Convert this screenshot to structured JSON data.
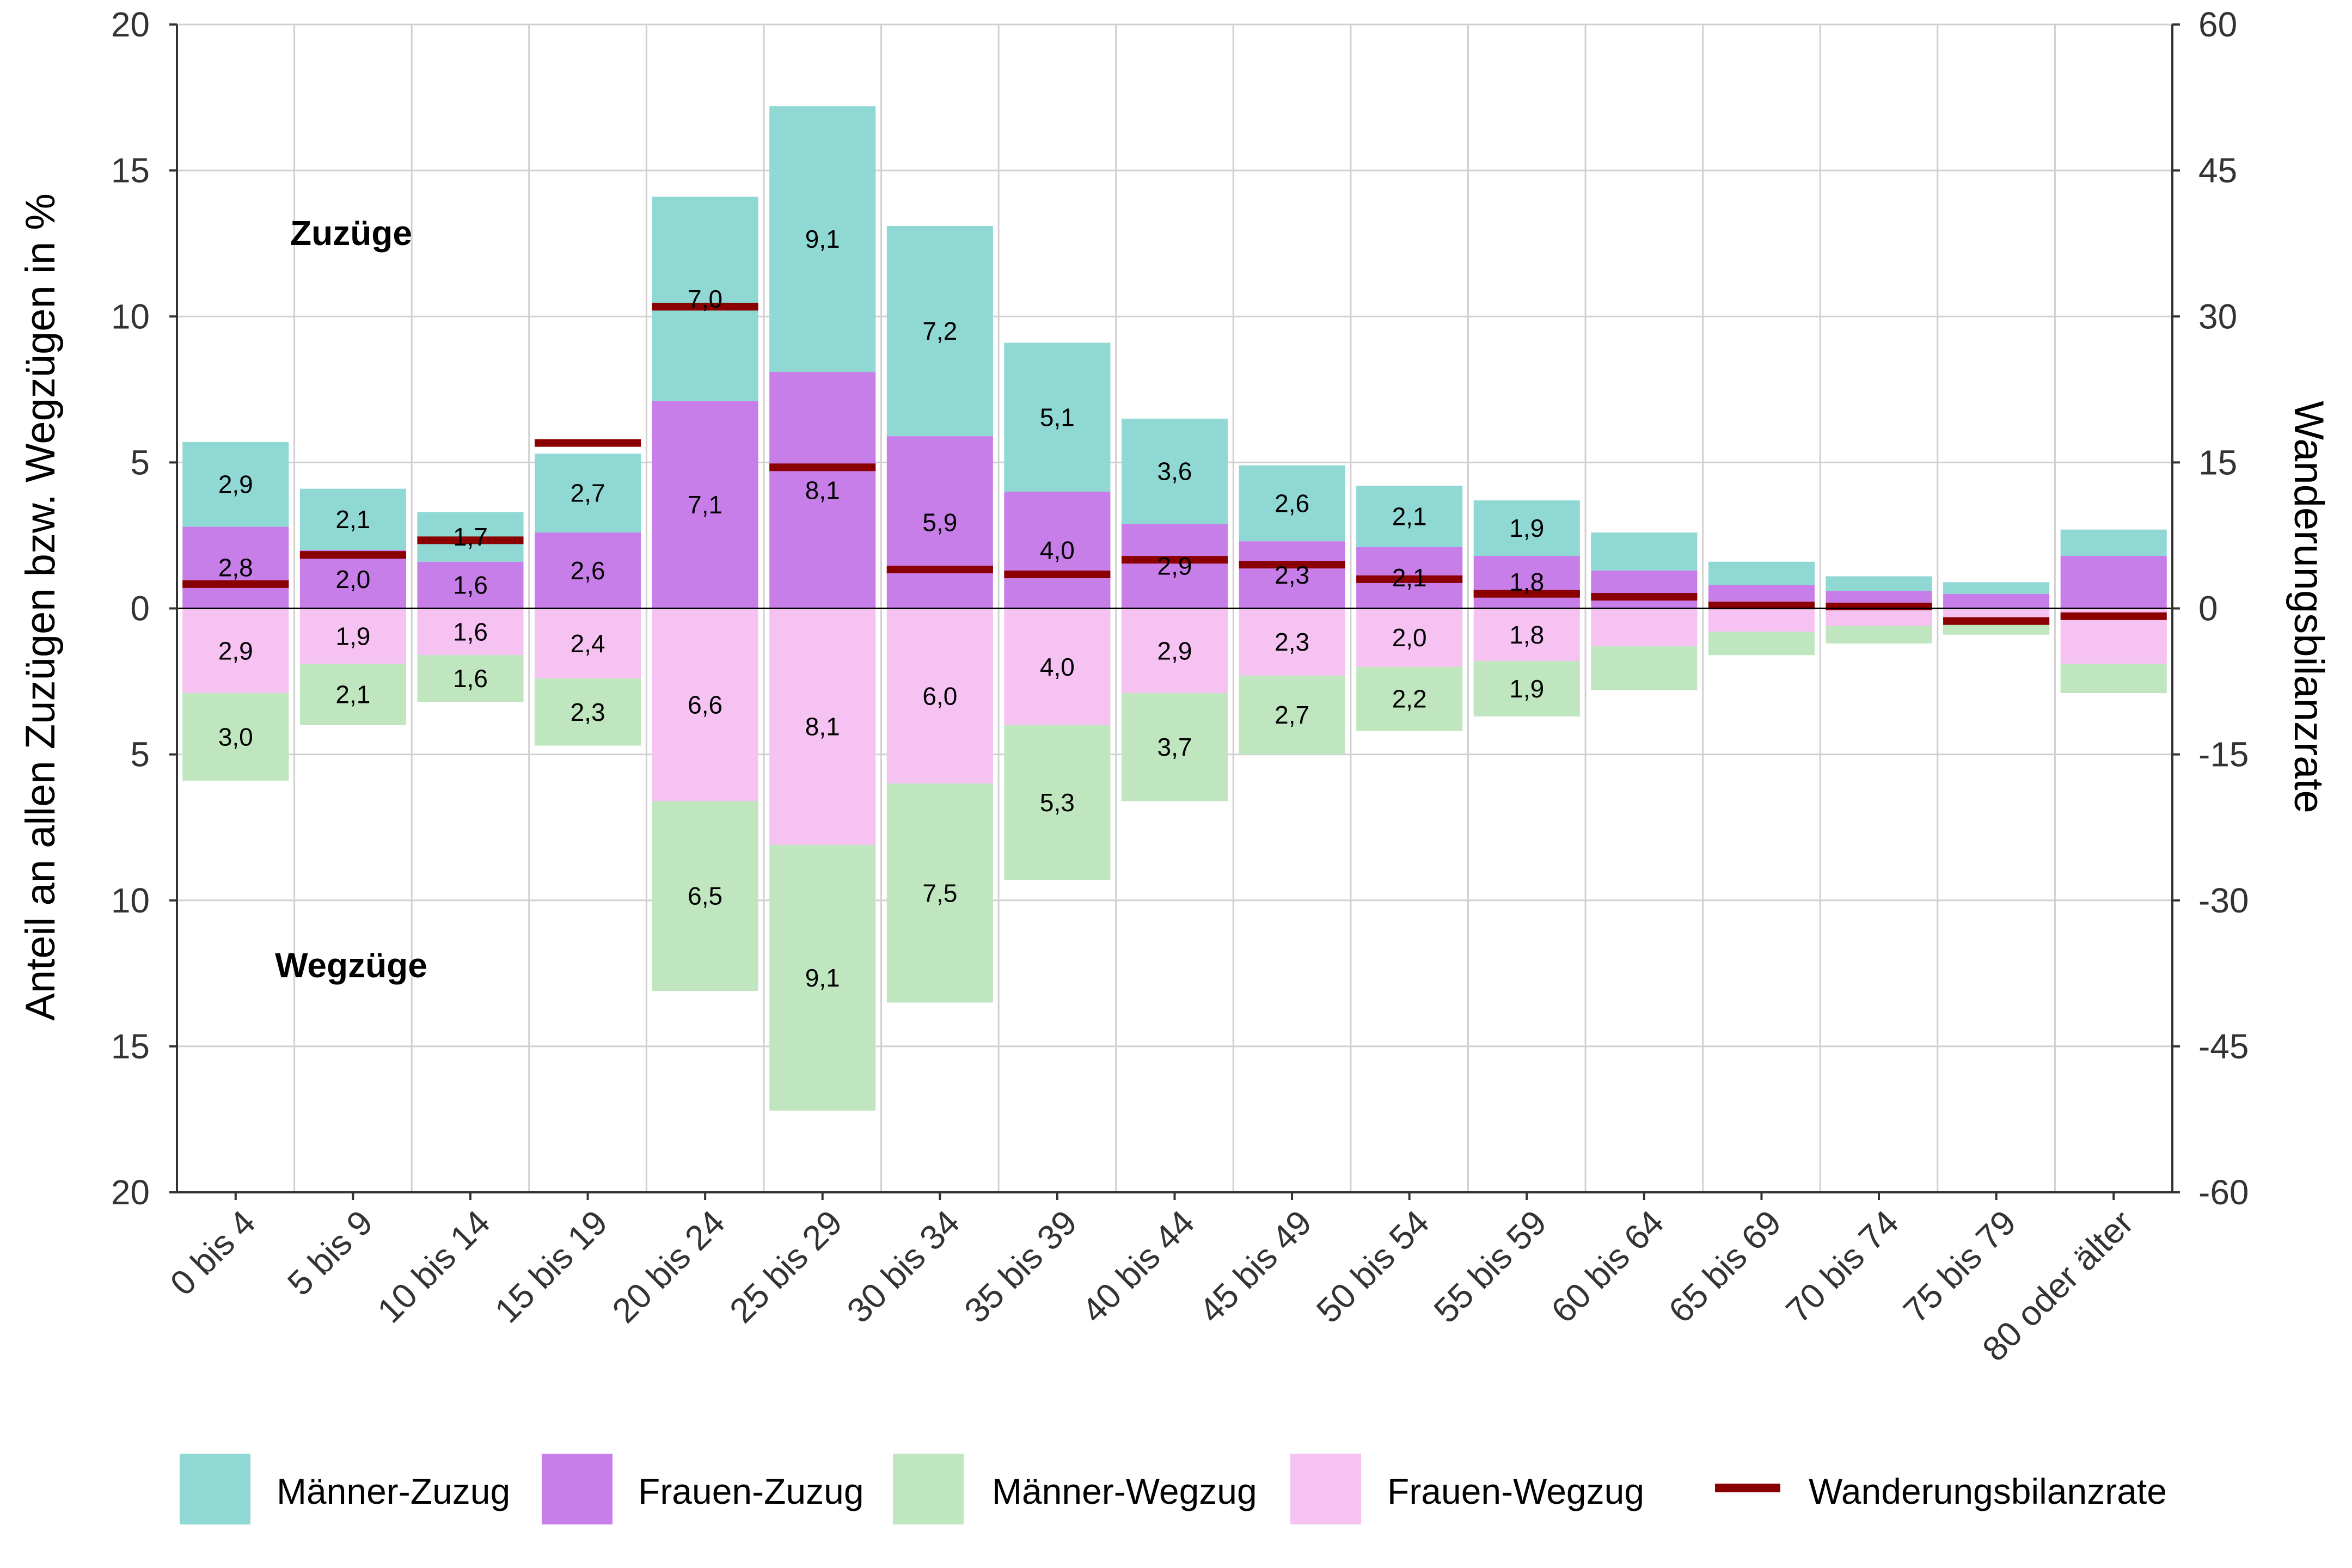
{
  "chart_data": {
    "type": "bar",
    "stacked": true,
    "diverging": true,
    "categories": [
      "0 bis 4",
      "5 bis 9",
      "10 bis 14",
      "15 bis 19",
      "20 bis 24",
      "25 bis 29",
      "30 bis 34",
      "35 bis 39",
      "40 bis 44",
      "45 bis 49",
      "50 bis 54",
      "55 bis 59",
      "60 bis 64",
      "65 bis 69",
      "70 bis 74",
      "75 bis 79",
      "80 oder älter"
    ],
    "series": [
      {
        "key": "frauen_zuzug",
        "name": "Frauen-Zuzug",
        "direction": "up",
        "color": "#c77ee8",
        "values": [
          2.8,
          2.0,
          1.6,
          2.6,
          7.1,
          8.1,
          5.9,
          4.0,
          2.9,
          2.3,
          2.1,
          1.8,
          1.3,
          0.8,
          0.6,
          0.5,
          1.8
        ],
        "labels": [
          "2,8",
          "2,0",
          "1,6",
          "2,6",
          "7,1",
          "8,1",
          "5,9",
          "4,0",
          "2,9",
          "2,3",
          "2,1",
          "1,8",
          "",
          "",
          "",
          "",
          ""
        ]
      },
      {
        "key": "maenner_zuzug",
        "name": "Männer-Zuzug",
        "direction": "up",
        "color": "#8fd8d4",
        "values": [
          2.9,
          2.1,
          1.7,
          2.7,
          7.0,
          9.1,
          7.2,
          5.1,
          3.6,
          2.6,
          2.1,
          1.9,
          1.3,
          0.8,
          0.5,
          0.4,
          0.9
        ],
        "labels": [
          "2,9",
          "2,1",
          "1,7",
          "2,7",
          "7,0",
          "9,1",
          "7,2",
          "5,1",
          "3,6",
          "2,6",
          "2,1",
          "1,9",
          "",
          "",
          "",
          "",
          ""
        ]
      },
      {
        "key": "frauen_wegzug",
        "name": "Frauen-Wegzug",
        "direction": "down",
        "color": "#f5c2f2",
        "values": [
          2.9,
          1.9,
          1.6,
          2.4,
          6.6,
          8.1,
          6.0,
          4.0,
          2.9,
          2.3,
          2.0,
          1.8,
          1.3,
          0.8,
          0.6,
          0.5,
          1.9
        ],
        "labels": [
          "2,9",
          "1,9",
          "1,6",
          "2,4",
          "6,6",
          "8,1",
          "6,0",
          "4,0",
          "2,9",
          "2,3",
          "2,0",
          "1,8",
          "",
          "",
          "",
          "",
          ""
        ]
      },
      {
        "key": "maenner_wegzug",
        "name": "Männer-Wegzug",
        "direction": "down",
        "color": "#bfe6bf",
        "values": [
          3.0,
          2.1,
          1.6,
          2.3,
          6.5,
          9.1,
          7.5,
          5.3,
          3.7,
          2.7,
          2.2,
          1.9,
          1.5,
          0.8,
          0.6,
          0.4,
          1.0
        ],
        "labels": [
          "3,0",
          "2,1",
          "1,6",
          "2,3",
          "6,5",
          "9,1",
          "7,5",
          "5,3",
          "3,7",
          "2,7",
          "2,2",
          "1,9",
          "",
          "",
          "",
          "",
          ""
        ]
      }
    ],
    "line_series": {
      "name": "Wanderungsbilanzrate",
      "color": "#8b0000",
      "axis": "right",
      "values": [
        2.5,
        5.5,
        7,
        17,
        31,
        14.5,
        4,
        3.5,
        5,
        4.5,
        3,
        1.5,
        1.2,
        0.3,
        0.2,
        -1.3,
        -0.8
      ]
    },
    "title": "",
    "ylabel": "Anteil an allen Zuzügen bzw. Wegzügen in %",
    "y2label": "Wanderungsbilanzrate",
    "ylim": [
      -20,
      20
    ],
    "y2lim": [
      -60,
      60
    ],
    "yticks": [
      20,
      15,
      10,
      5,
      0,
      -5,
      -10,
      -15,
      -20
    ],
    "yticklabels": [
      "20",
      "15",
      "10",
      "5",
      "0",
      "5",
      "10",
      "15",
      "20"
    ],
    "y2ticks": [
      60,
      45,
      30,
      15,
      0,
      -15,
      -30,
      -45,
      -60
    ],
    "y2ticklabels": [
      "60",
      "45",
      "30",
      "15",
      "0",
      "-15",
      "-30",
      "-45",
      "-60"
    ],
    "annotations": {
      "upper": "Zuzüge",
      "lower": "Wegzüge"
    },
    "grid": true,
    "legend_position": "bottom"
  },
  "legend": {
    "items": [
      {
        "label": "Männer-Zuzug",
        "color": "#8fd8d4",
        "kind": "box"
      },
      {
        "label": "Frauen-Zuzug",
        "color": "#c77ee8",
        "kind": "box"
      },
      {
        "label": "Männer-Wegzug",
        "color": "#bfe6bf",
        "kind": "box"
      },
      {
        "label": "Frauen-Wegzug",
        "color": "#f5c2f2",
        "kind": "box"
      },
      {
        "label": "Wanderungsbilanzrate",
        "color": "#8b0000",
        "kind": "line"
      }
    ]
  }
}
